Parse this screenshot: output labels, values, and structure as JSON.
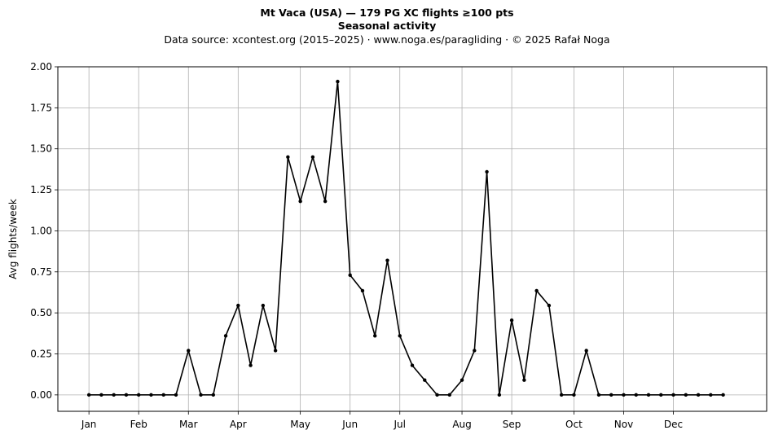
{
  "chart_data": {
    "type": "line",
    "title": "Mt Vaca (USA)  —  179 PG XC flights ≥100 pts",
    "title2": "Seasonal activity",
    "subtitle": "Data source: xcontest.org (2015–2025)  ·  www.noga.es/paragliding  ·  © 2025 Rafał Noga",
    "xlabel": "",
    "ylabel": "Avg flights/week",
    "ylim": [
      -0.1,
      2.0
    ],
    "xlim": [
      -2.5,
      54.5
    ],
    "yticks": [
      0.0,
      0.25,
      0.5,
      0.75,
      1.0,
      1.25,
      1.5,
      1.75,
      2.0
    ],
    "ytick_labels": [
      "0.00",
      "0.25",
      "0.50",
      "0.75",
      "1.00",
      "1.25",
      "1.50",
      "1.75",
      "2.00"
    ],
    "xticks": [
      0,
      4,
      8,
      12,
      17,
      21,
      25,
      30,
      34,
      39,
      43,
      47
    ],
    "xtick_labels": [
      "Jan",
      "Feb",
      "Mar",
      "Apr",
      "May",
      "Jun",
      "Jul",
      "Aug",
      "Sep",
      "Oct",
      "Nov",
      "Dec"
    ],
    "grid": true,
    "line_color": "#000000",
    "series": [
      {
        "x": [
          0,
          1,
          2,
          3,
          4,
          5,
          6,
          7,
          8,
          9,
          10,
          11,
          12,
          13,
          14,
          15,
          16,
          17,
          18,
          19,
          20,
          21,
          22,
          23,
          24,
          25,
          26,
          27,
          28,
          29,
          30,
          31,
          32,
          33,
          34,
          35,
          36,
          37,
          38,
          39,
          40,
          41,
          42,
          43,
          44,
          45,
          46,
          47,
          48,
          49,
          50,
          51
        ],
        "values": [
          0,
          0,
          0,
          0,
          0,
          0,
          0,
          0,
          0.27,
          0,
          0,
          0.36,
          0.545,
          0.18,
          0.545,
          0.27,
          1.45,
          1.18,
          1.45,
          1.18,
          1.91,
          0.73,
          0.635,
          0.36,
          0.82,
          0.36,
          0.18,
          0.09,
          0,
          0,
          0.09,
          0.27,
          1.36,
          0,
          0.455,
          0.09,
          0.635,
          0.545,
          0,
          0,
          0.27,
          0,
          0,
          0,
          0,
          0,
          0,
          0,
          0,
          0,
          0,
          0
        ]
      }
    ]
  }
}
